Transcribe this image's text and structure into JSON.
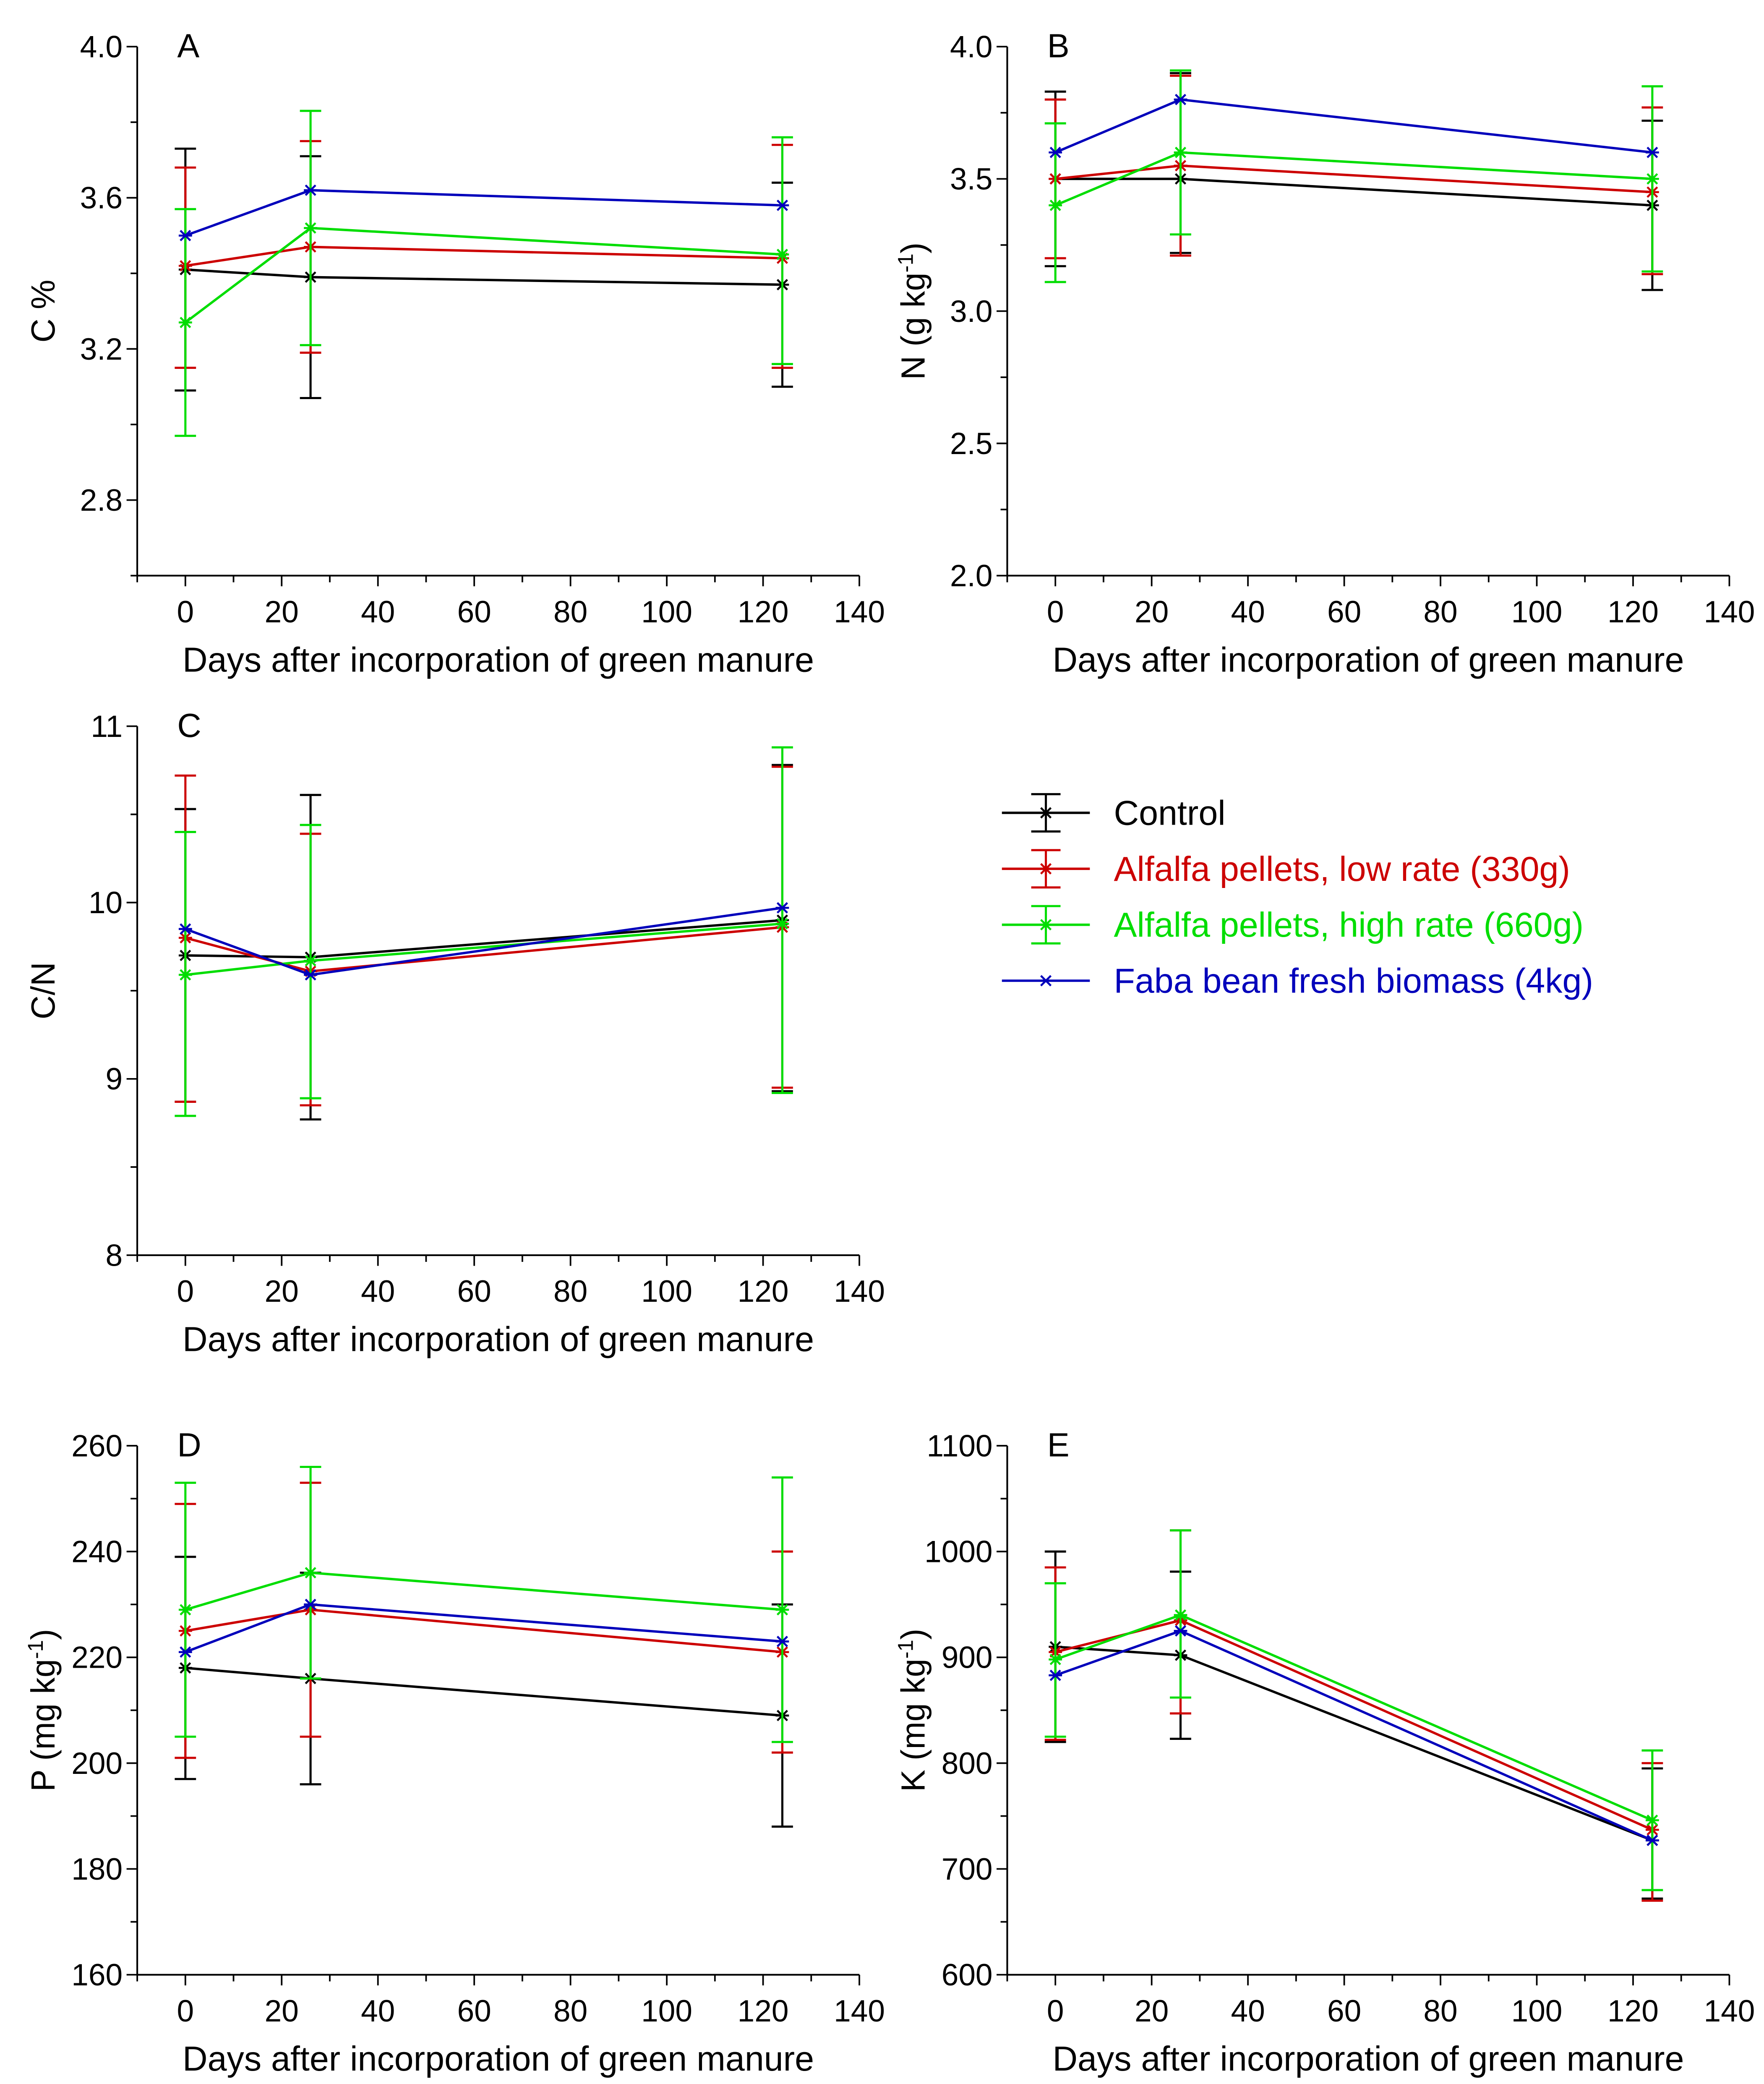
{
  "figure": {
    "legend_placement": "right of panel C"
  },
  "series_styles": [
    {
      "name": "Control",
      "color": "#000000"
    },
    {
      "name": "Alfalfa pellets, low rate (330g)",
      "color": "#cc0000"
    },
    {
      "name": "Alfalfa pellets, high rate (660g)",
      "color": "#00dd00"
    },
    {
      "name": "Faba bean fresh biomass (4kg)",
      "color": "#0000bb"
    }
  ],
  "chart_data": [
    {
      "panel": "A",
      "type": "line",
      "xlabel": "Days after incorporation of green manure",
      "ylabel": "C %",
      "xlim": [
        -10,
        140
      ],
      "ylim": [
        2.6,
        4.0
      ],
      "xticks": [
        "0",
        "20",
        "40",
        "60",
        "80",
        "100",
        "120",
        "140"
      ],
      "yticks": [
        "2.8",
        "3.2",
        "3.6",
        "4.0"
      ],
      "x": [
        0,
        26,
        124
      ],
      "series": [
        {
          "name": "Control",
          "values": [
            3.41,
            3.39,
            3.37
          ],
          "err_low": [
            3.09,
            3.07,
            3.1
          ],
          "err_high": [
            3.73,
            3.71,
            3.64
          ]
        },
        {
          "name": "Alfalfa pellets, low rate (330g)",
          "values": [
            3.42,
            3.47,
            3.44
          ],
          "err_low": [
            3.15,
            3.19,
            3.15
          ],
          "err_high": [
            3.68,
            3.75,
            3.74
          ]
        },
        {
          "name": "Alfalfa pellets, high rate (660g)",
          "values": [
            3.27,
            3.52,
            3.45
          ],
          "err_low": [
            2.97,
            3.21,
            3.16
          ],
          "err_high": [
            3.57,
            3.83,
            3.76
          ]
        },
        {
          "name": "Faba bean fresh biomass (4kg)",
          "values": [
            3.5,
            3.62,
            3.58
          ],
          "err_low": null,
          "err_high": null
        }
      ]
    },
    {
      "panel": "B",
      "type": "line",
      "xlabel": "Days after incorporation of green manure",
      "ylabel": "N (g kg⁻¹)",
      "xlim": [
        -10,
        140
      ],
      "ylim": [
        2.0,
        4.0
      ],
      "xticks": [
        "0",
        "20",
        "40",
        "60",
        "80",
        "100",
        "120",
        "140"
      ],
      "yticks": [
        "2.0",
        "2.5",
        "3.0",
        "3.5",
        "4.0"
      ],
      "x": [
        0,
        26,
        124
      ],
      "series": [
        {
          "name": "Control",
          "values": [
            3.5,
            3.5,
            3.4
          ],
          "err_low": [
            3.17,
            3.22,
            3.08
          ],
          "err_high": [
            3.83,
            3.9,
            3.72
          ]
        },
        {
          "name": "Alfalfa pellets, low rate (330g)",
          "values": [
            3.5,
            3.55,
            3.45
          ],
          "err_low": [
            3.2,
            3.21,
            3.14
          ],
          "err_high": [
            3.8,
            3.89,
            3.77
          ]
        },
        {
          "name": "Alfalfa pellets, high rate (660g)",
          "values": [
            3.4,
            3.6,
            3.5
          ],
          "err_low": [
            3.11,
            3.29,
            3.15
          ],
          "err_high": [
            3.71,
            3.91,
            3.85
          ]
        },
        {
          "name": "Faba bean fresh biomass (4kg)",
          "values": [
            3.6,
            3.8,
            3.6
          ],
          "err_low": null,
          "err_high": null
        }
      ]
    },
    {
      "panel": "C",
      "type": "line",
      "xlabel": "Days after incorporation of green manure",
      "ylabel": "C/N",
      "xlim": [
        -10,
        140
      ],
      "ylim": [
        8,
        11
      ],
      "xticks": [
        "0",
        "20",
        "40",
        "60",
        "80",
        "100",
        "120",
        "140"
      ],
      "yticks": [
        "8",
        "9",
        "10",
        "11"
      ],
      "x": [
        0,
        26,
        124
      ],
      "series": [
        {
          "name": "Control",
          "values": [
            9.7,
            9.69,
            9.9
          ],
          "err_low": [
            8.87,
            8.77,
            8.93
          ],
          "err_high": [
            10.53,
            10.61,
            10.78
          ]
        },
        {
          "name": "Alfalfa pellets, low rate (330g)",
          "values": [
            9.8,
            9.61,
            9.86
          ],
          "err_low": [
            8.87,
            8.85,
            8.95
          ],
          "err_high": [
            10.72,
            10.39,
            10.77
          ]
        },
        {
          "name": "Alfalfa pellets, high rate (660g)",
          "values": [
            9.59,
            9.67,
            9.88
          ],
          "err_low": [
            8.79,
            8.89,
            8.92
          ],
          "err_high": [
            10.4,
            10.44,
            10.88
          ]
        },
        {
          "name": "Faba bean fresh biomass (4kg)",
          "values": [
            9.85,
            9.59,
            9.97
          ],
          "err_low": null,
          "err_high": null
        }
      ]
    },
    {
      "panel": "D",
      "type": "line",
      "xlabel": "Days after incorporation of green manure",
      "ylabel": "P (mg kg⁻¹)",
      "xlim": [
        -10,
        140
      ],
      "ylim": [
        160,
        260
      ],
      "xticks": [
        "0",
        "20",
        "40",
        "60",
        "80",
        "100",
        "120",
        "140"
      ],
      "yticks": [
        "160",
        "180",
        "200",
        "220",
        "240",
        "260"
      ],
      "x": [
        0,
        26,
        124
      ],
      "series": [
        {
          "name": "Control",
          "values": [
            218,
            216,
            209
          ],
          "err_low": [
            197,
            196,
            188
          ],
          "err_high": [
            239,
            236,
            230
          ]
        },
        {
          "name": "Alfalfa pellets, low rate (330g)",
          "values": [
            225,
            229,
            221
          ],
          "err_low": [
            201,
            205,
            202
          ],
          "err_high": [
            249,
            253,
            240
          ]
        },
        {
          "name": "Alfalfa pellets, high rate (660g)",
          "values": [
            229,
            236,
            229
          ],
          "err_low": [
            205,
            216,
            204
          ],
          "err_high": [
            253,
            256,
            254
          ]
        },
        {
          "name": "Faba bean fresh biomass (4kg)",
          "values": [
            221,
            230,
            223
          ],
          "err_low": null,
          "err_high": null
        }
      ]
    },
    {
      "panel": "E",
      "type": "line",
      "xlabel": "Days after incorporation of green manure",
      "ylabel": "K (mg kg⁻¹)",
      "xlim": [
        -10,
        140
      ],
      "ylim": [
        600,
        1100
      ],
      "xticks": [
        "0",
        "20",
        "40",
        "60",
        "80",
        "100",
        "120",
        "140"
      ],
      "yticks": [
        "600",
        "700",
        "800",
        "900",
        "1000",
        "1100"
      ],
      "x": [
        0,
        26,
        124
      ],
      "series": [
        {
          "name": "Control",
          "values": [
            910,
            902,
            727
          ],
          "err_low": [
            820,
            823,
            672
          ],
          "err_high": [
            1000,
            981,
            795
          ]
        },
        {
          "name": "Alfalfa pellets, low rate (330g)",
          "values": [
            905,
            935,
            737
          ],
          "err_low": [
            822,
            847,
            670
          ],
          "err_high": [
            985,
            1020,
            800
          ]
        },
        {
          "name": "Alfalfa pellets, high rate (660g)",
          "values": [
            898,
            940,
            746
          ],
          "err_low": [
            825,
            862,
            680
          ],
          "err_high": [
            970,
            1020,
            812
          ]
        },
        {
          "name": "Faba bean fresh biomass (4kg)",
          "values": [
            883,
            925,
            727
          ],
          "err_low": null,
          "err_high": null
        }
      ]
    }
  ]
}
